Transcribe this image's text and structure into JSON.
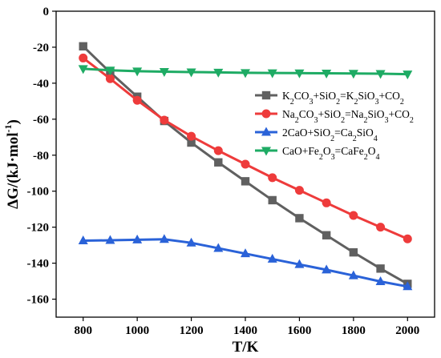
{
  "chart_data": {
    "type": "line",
    "title": "",
    "xlabel": {
      "main": "T/K"
    },
    "ylabel": {
      "main": "ΔG/(kJ·mol",
      "sup": "-1",
      "close": ")"
    },
    "xlim": [
      700,
      2100
    ],
    "ylim": [
      -170,
      0
    ],
    "xticks": [
      800,
      1000,
      1200,
      1400,
      1600,
      1800,
      2000
    ],
    "yticks": [
      0,
      -20,
      -40,
      -60,
      -80,
      -100,
      -120,
      -140,
      -160
    ],
    "legend_position": "upper-right",
    "x": [
      800,
      900,
      1000,
      1100,
      1200,
      1300,
      1400,
      1500,
      1600,
      1700,
      1800,
      1900,
      2000
    ],
    "series": [
      {
        "name": "K2CO3+SiO2=K2SiO3+CO2",
        "label_parts": [
          [
            "K",
            ""
          ],
          [
            "2",
            "sub"
          ],
          [
            "CO",
            ""
          ],
          [
            "3",
            "sub"
          ],
          [
            "+SiO",
            ""
          ],
          [
            "2",
            "sub"
          ],
          [
            "=K",
            ""
          ],
          [
            "2",
            "sub"
          ],
          [
            "SiO",
            ""
          ],
          [
            "3",
            "sub"
          ],
          [
            "+CO",
            ""
          ],
          [
            "2",
            "sub"
          ]
        ],
        "color": "#606060",
        "marker": "square",
        "values": [
          -19.5,
          -34,
          -47.5,
          -61,
          -73,
          -84,
          -94.5,
          -105,
          -115,
          -124.5,
          -134,
          -143,
          -151.5
        ]
      },
      {
        "name": "Na2CO3+SiO2=Na2SiO3+CO2",
        "label_parts": [
          [
            "Na",
            ""
          ],
          [
            "2",
            "sub"
          ],
          [
            "CO",
            ""
          ],
          [
            "3",
            "sub"
          ],
          [
            "+SiO",
            ""
          ],
          [
            "2",
            "sub"
          ],
          [
            "=Na",
            ""
          ],
          [
            "2",
            "sub"
          ],
          [
            "SiO",
            ""
          ],
          [
            "3",
            "sub"
          ],
          [
            "+CO",
            ""
          ],
          [
            "2",
            "sub"
          ]
        ],
        "color": "#ee3b3b",
        "marker": "circle",
        "values": [
          -26,
          -37.5,
          -49.5,
          -60.5,
          -69.5,
          -77.5,
          -85,
          -92.5,
          -99.5,
          -106.5,
          -113.5,
          -120,
          -126.5
        ]
      },
      {
        "name": "2CaO+SiO2=Ca2SiO4",
        "label_parts": [
          [
            "2CaO+SiO",
            ""
          ],
          [
            "2",
            "sub"
          ],
          [
            "=Ca",
            ""
          ],
          [
            "2",
            "sub"
          ],
          [
            "SiO",
            ""
          ],
          [
            "4",
            "sub"
          ]
        ],
        "color": "#2a62d8",
        "marker": "triangle-up",
        "values": [
          -127.5,
          -127.3,
          -127,
          -126.7,
          -128.7,
          -131.7,
          -134.7,
          -137.7,
          -140.7,
          -143.7,
          -146.9,
          -150.2,
          -153
        ]
      },
      {
        "name": "CaO+Fe2O3=CaFe2O4",
        "label_parts": [
          [
            "CaO+Fe",
            ""
          ],
          [
            "2",
            "sub"
          ],
          [
            "O",
            ""
          ],
          [
            "3",
            "sub"
          ],
          [
            "=CaFe",
            ""
          ],
          [
            "2",
            "sub"
          ],
          [
            "O",
            ""
          ],
          [
            "4",
            "sub"
          ]
        ],
        "color": "#1eab64",
        "marker": "triangle-down",
        "values": [
          -32,
          -32.8,
          -33.3,
          -33.6,
          -33.8,
          -34,
          -34.2,
          -34.3,
          -34.4,
          -34.5,
          -34.6,
          -34.7,
          -35
        ]
      }
    ]
  }
}
